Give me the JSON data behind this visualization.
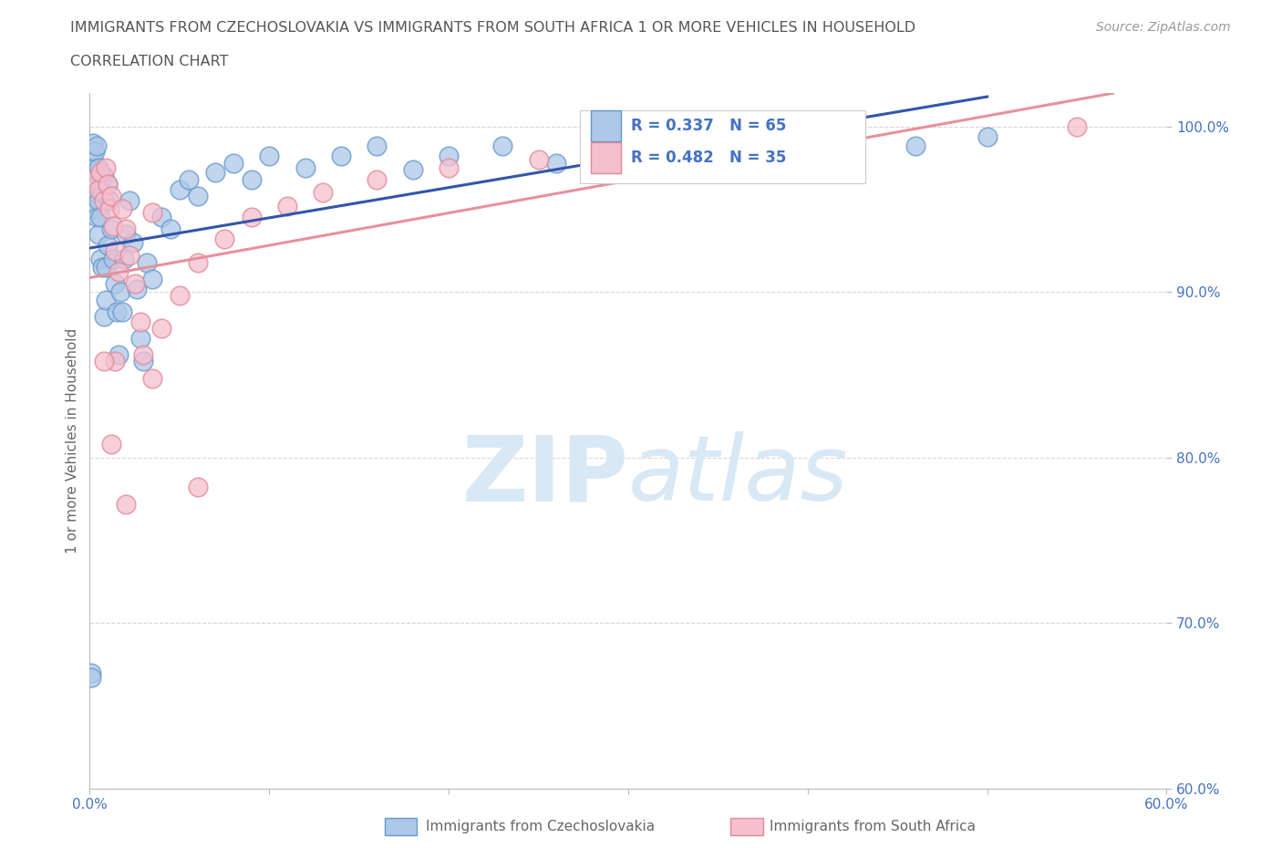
{
  "title_line1": "IMMIGRANTS FROM CZECHOSLOVAKIA VS IMMIGRANTS FROM SOUTH AFRICA 1 OR MORE VEHICLES IN HOUSEHOLD",
  "title_line2": "CORRELATION CHART",
  "source_text": "Source: ZipAtlas.com",
  "ylabel": "1 or more Vehicles in Household",
  "xlim": [
    0.0,
    0.6
  ],
  "ylim": [
    0.6,
    1.02
  ],
  "r_czech": 0.337,
  "n_czech": 65,
  "r_sa": 0.482,
  "n_sa": 35,
  "legend_label_czech": "Immigrants from Czechoslovakia",
  "legend_label_sa": "Immigrants from South Africa",
  "dot_color_czech": "#adc8e8",
  "dot_edge_color_czech": "#6699cc",
  "dot_color_sa": "#f5bfcf",
  "dot_edge_color_sa": "#e08898",
  "line_color_czech": "#3355aa",
  "line_color_sa": "#e8909a",
  "watermark_color": "#d8e8f5",
  "title_color": "#555555",
  "axis_label_color": "#666666",
  "tick_label_color": "#4472c4",
  "grid_color": "#cccccc",
  "background_color": "#ffffff",
  "czech_x": [
    0.001,
    0.002,
    0.002,
    0.002,
    0.003,
    0.003,
    0.003,
    0.003,
    0.004,
    0.004,
    0.004,
    0.005,
    0.005,
    0.005,
    0.006,
    0.006,
    0.006,
    0.007,
    0.007,
    0.008,
    0.008,
    0.009,
    0.009,
    0.01,
    0.01,
    0.011,
    0.012,
    0.013,
    0.014,
    0.015,
    0.016,
    0.017,
    0.018,
    0.019,
    0.02,
    0.022,
    0.024,
    0.026,
    0.028,
    0.03,
    0.032,
    0.035,
    0.04,
    0.045,
    0.05,
    0.055,
    0.06,
    0.07,
    0.08,
    0.09,
    0.1,
    0.12,
    0.14,
    0.16,
    0.18,
    0.2,
    0.23,
    0.26,
    0.3,
    0.34,
    0.38,
    0.42,
    0.46,
    0.5,
    0.001
  ],
  "czech_y": [
    0.67,
    0.98,
    0.99,
    0.96,
    0.97,
    0.975,
    0.985,
    0.95,
    0.988,
    0.965,
    0.945,
    0.975,
    0.955,
    0.935,
    0.968,
    0.945,
    0.92,
    0.96,
    0.915,
    0.97,
    0.885,
    0.915,
    0.895,
    0.965,
    0.928,
    0.955,
    0.938,
    0.92,
    0.905,
    0.888,
    0.862,
    0.9,
    0.888,
    0.92,
    0.935,
    0.955,
    0.93,
    0.902,
    0.872,
    0.858,
    0.918,
    0.908,
    0.945,
    0.938,
    0.962,
    0.968,
    0.958,
    0.972,
    0.978,
    0.968,
    0.982,
    0.975,
    0.982,
    0.988,
    0.974,
    0.982,
    0.988,
    0.978,
    0.985,
    0.99,
    0.986,
    0.982,
    0.988,
    0.994,
    0.667
  ],
  "sa_x": [
    0.003,
    0.005,
    0.006,
    0.008,
    0.009,
    0.01,
    0.011,
    0.012,
    0.013,
    0.014,
    0.016,
    0.018,
    0.02,
    0.022,
    0.025,
    0.028,
    0.03,
    0.035,
    0.04,
    0.05,
    0.06,
    0.075,
    0.09,
    0.11,
    0.13,
    0.16,
    0.2,
    0.25,
    0.02,
    0.014,
    0.012,
    0.55,
    0.008,
    0.035,
    0.06
  ],
  "sa_y": [
    0.968,
    0.962,
    0.972,
    0.955,
    0.975,
    0.965,
    0.95,
    0.958,
    0.94,
    0.925,
    0.912,
    0.95,
    0.938,
    0.922,
    0.905,
    0.882,
    0.862,
    0.848,
    0.878,
    0.898,
    0.918,
    0.932,
    0.945,
    0.952,
    0.96,
    0.968,
    0.975,
    0.98,
    0.772,
    0.858,
    0.808,
    1.0,
    0.858,
    0.948,
    0.782
  ]
}
